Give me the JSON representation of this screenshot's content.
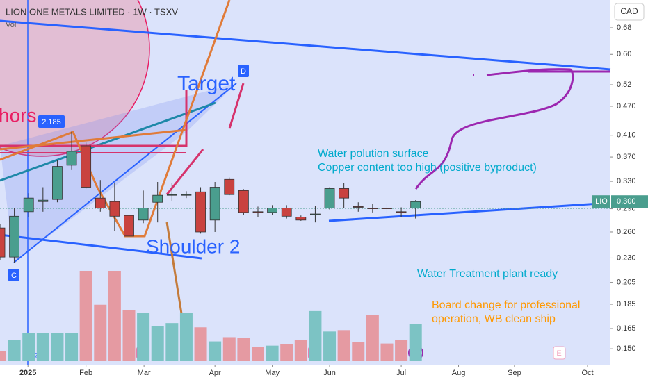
{
  "chart_data": {
    "type": "candlestick",
    "title": "LION ONE METALS LIMITED · 1W · TSXV",
    "subtitle": "Vol",
    "currency": "CAD",
    "log_scale": true,
    "x": [
      0,
      1,
      2,
      3,
      4,
      5,
      6,
      7,
      8,
      9,
      10,
      11,
      12,
      13,
      14,
      15,
      16,
      17,
      18,
      19,
      20,
      21,
      22,
      23,
      24,
      25,
      26,
      27,
      28,
      29
    ],
    "open": [
      0.265,
      0.231,
      0.286,
      0.3,
      0.303,
      0.356,
      0.39,
      0.305,
      0.3,
      0.281,
      0.275,
      0.299,
      0.309,
      0.31,
      0.314,
      0.275,
      0.333,
      0.316,
      0.286,
      0.285,
      0.291,
      0.279,
      0.283,
      0.291,
      0.319,
      0.293,
      0.291,
      0.291,
      0.286,
      0.291
    ],
    "close": [
      0.231,
      0.28,
      0.305,
      0.302,
      0.354,
      0.38,
      0.321,
      0.291,
      0.28,
      0.255,
      0.291,
      0.309,
      0.31,
      0.31,
      0.26,
      0.321,
      0.31,
      0.285,
      0.285,
      0.291,
      0.28,
      0.275,
      0.283,
      0.319,
      0.305,
      0.292,
      0.29,
      0.29,
      0.285,
      0.3
    ],
    "high": [
      0.27,
      0.291,
      0.312,
      0.321,
      0.365,
      0.417,
      0.396,
      0.332,
      0.327,
      0.291,
      0.316,
      0.329,
      0.327,
      0.315,
      0.321,
      0.329,
      0.336,
      0.318,
      0.293,
      0.295,
      0.295,
      0.281,
      0.294,
      0.321,
      0.327,
      0.299,
      0.297,
      0.297,
      0.292,
      0.302
    ],
    "low": [
      0.228,
      0.225,
      0.279,
      0.286,
      0.299,
      0.348,
      0.319,
      0.286,
      0.261,
      0.251,
      0.271,
      0.272,
      0.301,
      0.305,
      0.258,
      0.26,
      0.309,
      0.282,
      0.279,
      0.282,
      0.277,
      0.274,
      0.272,
      0.289,
      0.291,
      0.286,
      0.285,
      0.285,
      0.279,
      0.277
    ],
    "volume": [
      14,
      30,
      40,
      40,
      40,
      40,
      128,
      80,
      128,
      72,
      68,
      50,
      54,
      68,
      48,
      28,
      34,
      33,
      20,
      22,
      24,
      30,
      71,
      42,
      44,
      27,
      65,
      25,
      30,
      53
    ],
    "up_color": "#4a9e8e",
    "down_color": "#c9423f",
    "volume_up_color": "#7cc3c4",
    "volume_down_color": "#e59aa2",
    "xlim": [
      0,
      42.6
    ],
    "xticks": [
      {
        "value": 1.95,
        "label": "2025"
      },
      {
        "value": 6.0,
        "label": "Feb"
      },
      {
        "value": 10.05,
        "label": "Mar"
      },
      {
        "value": 15.0,
        "label": "Apr"
      },
      {
        "value": 19.0,
        "label": "May"
      },
      {
        "value": 23.0,
        "label": "Jun"
      },
      {
        "value": 28.0,
        "label": "Jul"
      },
      {
        "value": 32.0,
        "label": "Aug"
      },
      {
        "value": 35.9,
        "label": "Sep"
      },
      {
        "value": 41.0,
        "label": "Oct"
      }
    ],
    "ylim": [
      0.1415,
      0.775
    ],
    "yticks": [
      0.68,
      {
        "value": 0.6,
        "label": "0.60"
      },
      0.52,
      {
        "value": 0.47,
        "label": "0.470"
      },
      {
        "value": 0.41,
        "label": "0.410"
      },
      {
        "value": 0.37,
        "label": "0.370"
      },
      {
        "value": 0.33,
        "label": "0.330"
      },
      {
        "value": 0.29,
        "label": "0.290"
      },
      {
        "value": 0.26,
        "label": "0.260"
      },
      {
        "value": 0.23,
        "label": "0.230"
      },
      0.205,
      0.185,
      0.165,
      {
        "value": 0.15,
        "label": "0.150"
      }
    ],
    "last_price": {
      "symbol": "LIO",
      "value": 0.3,
      "value_label": "0.300"
    },
    "annotations": [
      "Target",
      "Shoulder 2",
      "hors",
      "Water polution surface",
      "Copper content too high (positive byproduct)",
      "Water Treatment plant ready",
      "Board change for professional",
      "operation, WB clean ship"
    ],
    "markers": [
      "2.185",
      "D",
      "C",
      "3",
      "E",
      "E",
      "E"
    ]
  }
}
